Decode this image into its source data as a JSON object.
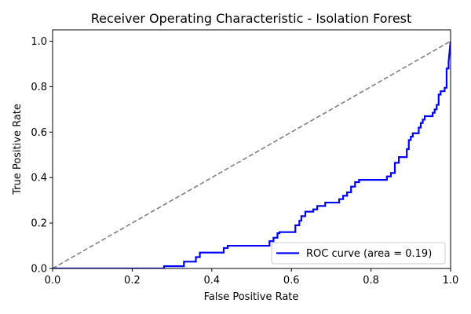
{
  "chart_data": {
    "type": "line",
    "title": "Receiver Operating Characteristic - Isolation Forest",
    "xlabel": "False Positive Rate",
    "ylabel": "True Positive Rate",
    "xlim": [
      0.0,
      1.0
    ],
    "ylim": [
      0.0,
      1.05
    ],
    "xticks": [
      "0.0",
      "0.2",
      "0.4",
      "0.6",
      "0.8",
      "1.0"
    ],
    "yticks": [
      "0.0",
      "0.2",
      "0.4",
      "0.6",
      "0.8",
      "1.0"
    ],
    "grid": false,
    "legend_position": "lower-right",
    "series": [
      {
        "name": "ROC curve (area = 0.19)",
        "color": "#0000ff",
        "style": "solid",
        "x": [
          0.0,
          0.28,
          0.28,
          0.33,
          0.33,
          0.36,
          0.36,
          0.37,
          0.37,
          0.43,
          0.43,
          0.44,
          0.44,
          0.545,
          0.545,
          0.555,
          0.555,
          0.565,
          0.565,
          0.57,
          0.57,
          0.61,
          0.61,
          0.62,
          0.62,
          0.625,
          0.625,
          0.635,
          0.635,
          0.655,
          0.655,
          0.665,
          0.665,
          0.685,
          0.685,
          0.72,
          0.72,
          0.73,
          0.73,
          0.74,
          0.74,
          0.75,
          0.75,
          0.76,
          0.76,
          0.77,
          0.77,
          0.84,
          0.84,
          0.85,
          0.85,
          0.86,
          0.86,
          0.87,
          0.87,
          0.89,
          0.89,
          0.895,
          0.895,
          0.9,
          0.9,
          0.905,
          0.905,
          0.92,
          0.92,
          0.925,
          0.925,
          0.93,
          0.93,
          0.935,
          0.935,
          0.955,
          0.955,
          0.96,
          0.96,
          0.965,
          0.965,
          0.97,
          0.97,
          0.975,
          0.975,
          0.985,
          0.985,
          0.99,
          0.99,
          0.995,
          0.995,
          1.0
        ],
        "y": [
          0.0,
          0.0,
          0.01,
          0.01,
          0.03,
          0.03,
          0.05,
          0.05,
          0.07,
          0.07,
          0.09,
          0.09,
          0.1,
          0.1,
          0.12,
          0.12,
          0.135,
          0.135,
          0.155,
          0.155,
          0.16,
          0.16,
          0.19,
          0.19,
          0.21,
          0.21,
          0.23,
          0.23,
          0.25,
          0.25,
          0.26,
          0.26,
          0.275,
          0.275,
          0.29,
          0.29,
          0.305,
          0.305,
          0.32,
          0.32,
          0.335,
          0.335,
          0.36,
          0.36,
          0.38,
          0.38,
          0.39,
          0.39,
          0.405,
          0.405,
          0.42,
          0.42,
          0.465,
          0.465,
          0.49,
          0.49,
          0.525,
          0.525,
          0.565,
          0.565,
          0.58,
          0.58,
          0.595,
          0.595,
          0.62,
          0.62,
          0.64,
          0.64,
          0.655,
          0.655,
          0.67,
          0.67,
          0.685,
          0.685,
          0.7,
          0.7,
          0.72,
          0.72,
          0.765,
          0.765,
          0.78,
          0.78,
          0.795,
          0.795,
          0.88,
          0.88,
          0.91,
          1.0
        ]
      },
      {
        "name": "",
        "color": "#808080",
        "style": "dashed",
        "x": [
          0.0,
          1.0
        ],
        "y": [
          0.0,
          1.0
        ]
      }
    ]
  }
}
